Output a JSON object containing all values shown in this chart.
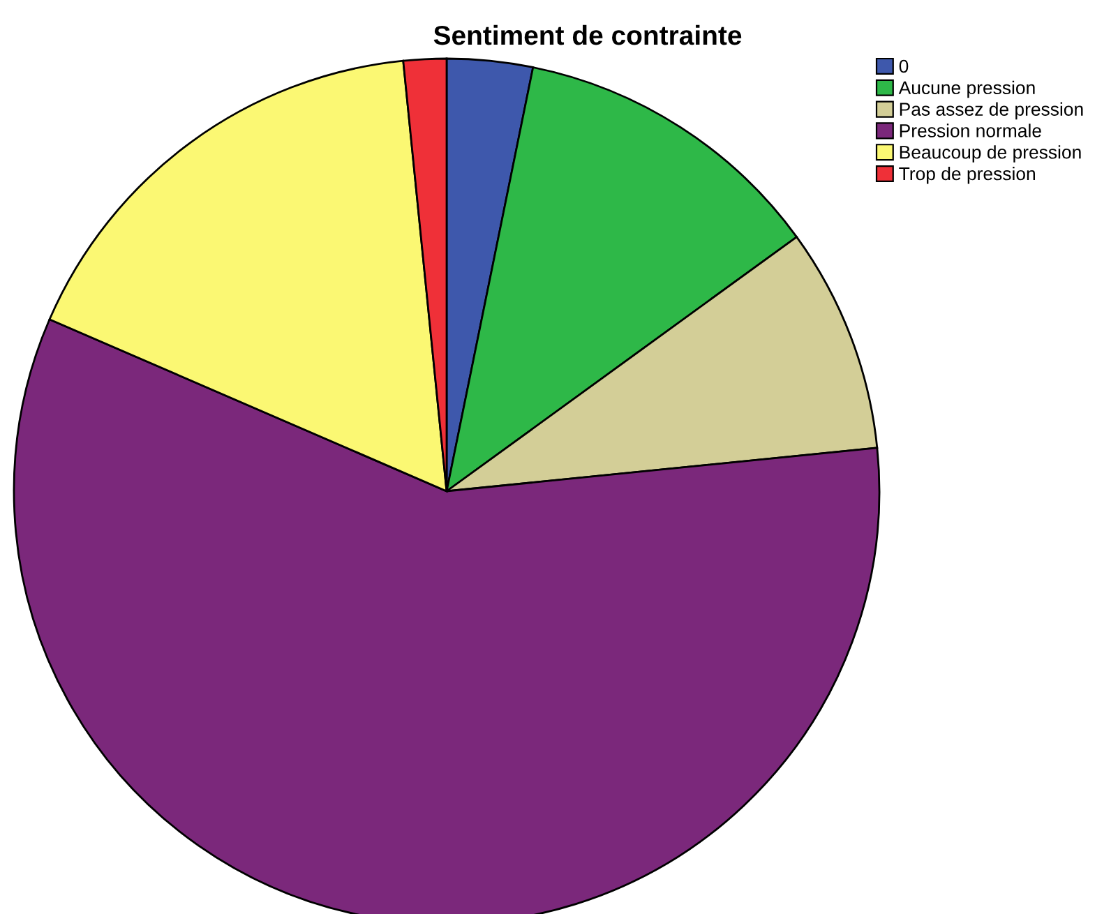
{
  "chart_data": {
    "type": "pie",
    "title": "Sentiment de contrainte",
    "categories": [
      "0",
      "Aucune pression",
      "Pas assez de pression",
      "Pression normale",
      "Beaucoup de pression",
      "Trop de pression"
    ],
    "values": [
      3.2,
      11.8,
      8.4,
      58.1,
      16.9,
      1.6
    ],
    "colors": [
      "#3e58ac",
      "#2eb848",
      "#d3ce97",
      "#7b287b",
      "#fbf873",
      "#ef3038"
    ],
    "legend": "top right"
  }
}
